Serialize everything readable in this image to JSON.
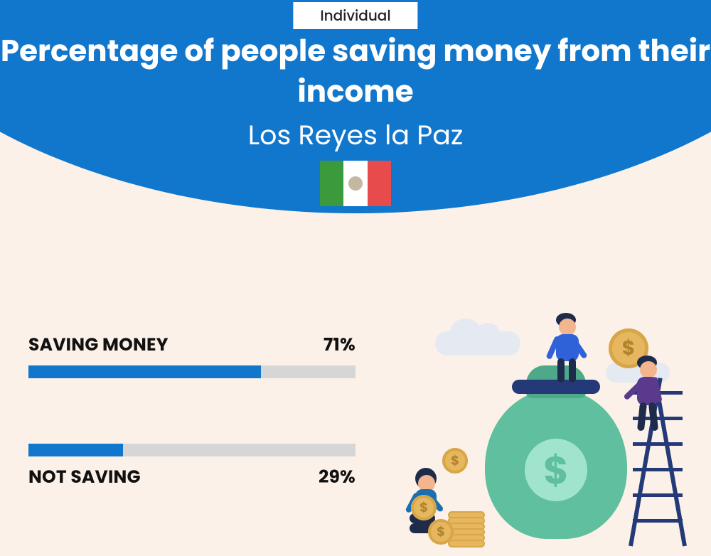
{
  "badge": "Individual",
  "title": "Percentage of people saving money from their income",
  "subtitle": "Los Reyes la Paz",
  "flag": {
    "left_color": "#3a9a3c",
    "mid_color": "#ffffff",
    "right_color": "#e84b4b"
  },
  "chart": {
    "type": "bar",
    "track_color": "#d6d6d6",
    "fill_color": "#1177cc",
    "text_color": "#111111",
    "label_fontsize": 25,
    "bars": [
      {
        "label": "SAVING MONEY",
        "value": 71,
        "value_label": "71%",
        "label_position": "above"
      },
      {
        "label": "NOT SAVING",
        "value": 29,
        "value_label": "29%",
        "label_position": "below"
      }
    ]
  },
  "colors": {
    "hero": "#1177cc",
    "background": "#fcf1e8",
    "bag": "#5fbf9e",
    "bag_circle": "#a1e4cd",
    "coin": "#e7b75f",
    "coin_rim": "#d7a648",
    "ladder": "#243a78",
    "cloud": "#e4e9f2"
  }
}
